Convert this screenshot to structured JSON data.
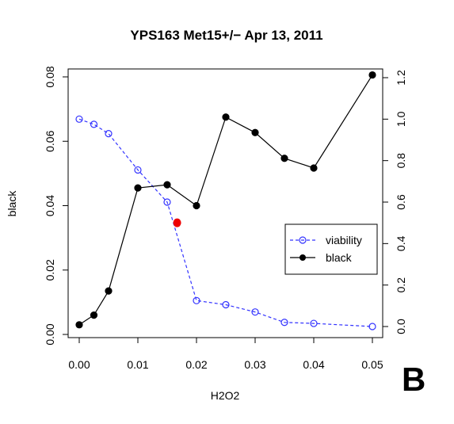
{
  "chart_data": {
    "type": "line",
    "title": "YPS163 Met15+/− Apr 13, 2011",
    "xlabel": "H2O2",
    "ylabel": "black",
    "xlim": [
      0,
      0.05
    ],
    "ylim_left": [
      0,
      0.08
    ],
    "ylim_right": [
      0,
      1.2
    ],
    "x_ticks": [
      "0.00",
      "0.01",
      "0.02",
      "0.03",
      "0.04",
      "0.05"
    ],
    "y_left_ticks": [
      "0.00",
      "0.02",
      "0.04",
      "0.06",
      "0.08"
    ],
    "y_right_ticks": [
      "0.0",
      "0.2",
      "0.4",
      "0.6",
      "0.8",
      "1.0",
      "1.2"
    ],
    "series": [
      {
        "name": "viability",
        "axis": "right",
        "style": "dashed, open circles",
        "color": "#3333ff",
        "x": [
          0,
          0.0025,
          0.005,
          0.01,
          0.015,
          0.02,
          0.025,
          0.03,
          0.035,
          0.04,
          0.05
        ],
        "values": [
          1.0,
          0.975,
          0.93,
          0.755,
          0.6,
          0.125,
          0.105,
          0.07,
          0.02,
          0.015,
          0.0
        ]
      },
      {
        "name": "black",
        "axis": "left",
        "style": "solid, filled circles",
        "color": "#000000",
        "x": [
          0,
          0.0025,
          0.005,
          0.01,
          0.015,
          0.02,
          0.025,
          0.03,
          0.035,
          0.04,
          0.05
        ],
        "values": [
          0.003,
          0.006,
          0.0135,
          0.0455,
          0.0465,
          0.04,
          0.0675,
          0.0627,
          0.0547,
          0.0517,
          0.0806
        ]
      }
    ],
    "annotations": [
      {
        "kind": "marker",
        "color": "#ee0000",
        "x": 0.0167,
        "axis": "right",
        "value": 0.5
      }
    ],
    "legend": {
      "placement": "right-middle",
      "items": [
        "viability",
        "black"
      ]
    },
    "panel_label": "B",
    "grid": false
  }
}
